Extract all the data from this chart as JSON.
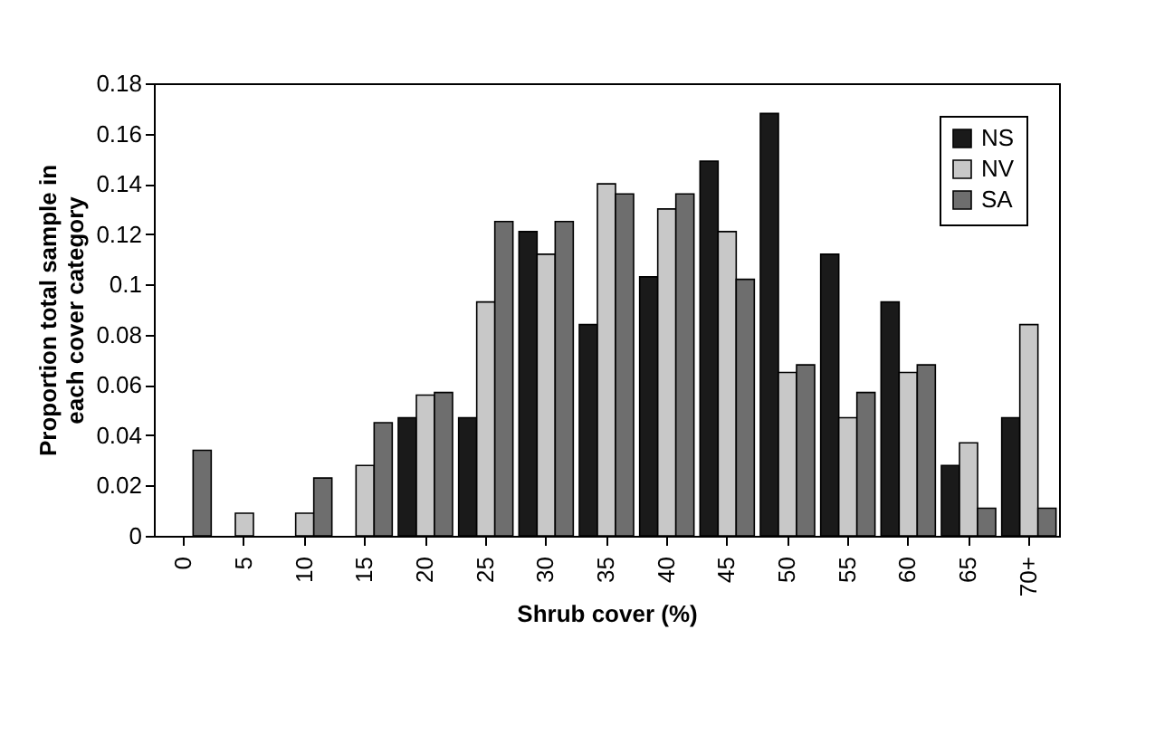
{
  "chart_data": {
    "type": "bar",
    "xlabel": "Shrub cover (%)",
    "ylabel": "Proportion total sample in each cover category",
    "categories": [
      "0",
      "5",
      "10",
      "15",
      "20",
      "25",
      "30",
      "35",
      "40",
      "45",
      "50",
      "55",
      "60",
      "65",
      "70+"
    ],
    "series": [
      {
        "name": "NS",
        "color": "#1a1a1a",
        "values": [
          null,
          null,
          null,
          null,
          0.047,
          0.047,
          0.121,
          0.084,
          0.103,
          0.149,
          0.168,
          0.112,
          0.093,
          0.028,
          0.047
        ]
      },
      {
        "name": "NV",
        "color": "#c8c8c8",
        "values": [
          null,
          0.009,
          0.009,
          0.028,
          0.056,
          0.093,
          0.112,
          0.14,
          0.13,
          0.121,
          0.065,
          0.047,
          0.065,
          0.037,
          0.084
        ]
      },
      {
        "name": "SA",
        "color": "#6e6e6e",
        "values": [
          0.034,
          null,
          0.023,
          0.045,
          0.057,
          0.125,
          0.125,
          0.136,
          0.136,
          0.102,
          0.068,
          0.057,
          0.068,
          0.011,
          0.011
        ]
      }
    ],
    "ylim": [
      0,
      0.18
    ],
    "yticks": [
      0,
      0.02,
      0.04,
      0.06,
      0.08,
      0.1,
      0.12,
      0.14,
      0.16,
      0.18
    ],
    "grid": false,
    "legend": "top right"
  }
}
